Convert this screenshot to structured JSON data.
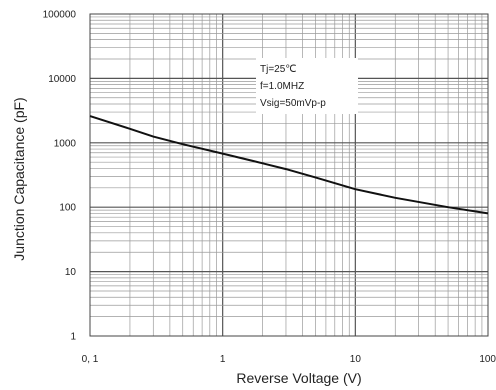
{
  "chart_data": {
    "type": "line",
    "title": "",
    "xlabel": "Reverse Voltage (V)",
    "ylabel": "Junction Capacitance (pF)",
    "x_scale": "log",
    "y_scale": "log",
    "xlim": [
      0.1,
      100
    ],
    "ylim": [
      1,
      100000
    ],
    "x_tick_labels": [
      "0, 1",
      "1",
      "10",
      "100"
    ],
    "y_tick_labels": [
      "1",
      "10",
      "100",
      "1000",
      "10000",
      "100000"
    ],
    "grid": true,
    "annotations": [
      "Tj=25℃",
      "f=1.0MHZ",
      "Vsig=50mVp-p"
    ],
    "series": [
      {
        "x": [
          0.1,
          0.2,
          0.3,
          0.5,
          1,
          2,
          3,
          5,
          10,
          20,
          50,
          100
        ],
        "y": [
          2600,
          1650,
          1250,
          950,
          680,
          480,
          390,
          290,
          190,
          140,
          100,
          80
        ]
      }
    ],
    "line_color": "#111111",
    "grid_color": "#9a9a9a"
  }
}
